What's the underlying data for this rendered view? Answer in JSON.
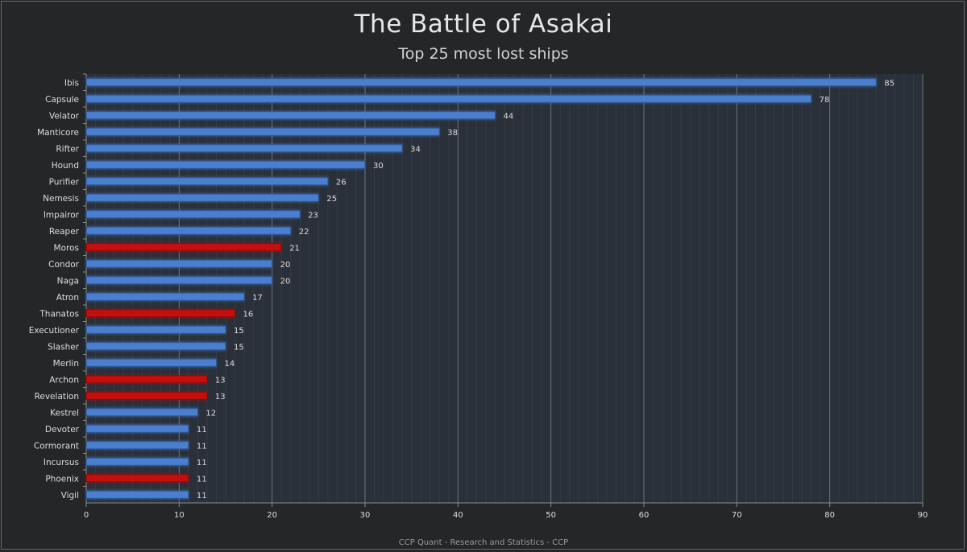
{
  "chart_data": {
    "type": "bar",
    "orientation": "horizontal",
    "title": "The Battle of Asakai",
    "subtitle": "Top 25 most lost ships",
    "footer": "CCP Quant - Research and Statistics - CCP",
    "categories": [
      "Ibis",
      "Capsule",
      "Velator",
      "Manticore",
      "Rifter",
      "Hound",
      "Purifier",
      "Nemesis",
      "Impairor",
      "Reaper",
      "Moros",
      "Condor",
      "Naga",
      "Atron",
      "Thanatos",
      "Executioner",
      "Slasher",
      "Merlin",
      "Archon",
      "Revelation",
      "Kestrel",
      "Devoter",
      "Cormorant",
      "Incursus",
      "Phoenix",
      "Vigil"
    ],
    "values": [
      85,
      78,
      44,
      38,
      34,
      30,
      26,
      25,
      23,
      22,
      21,
      20,
      20,
      17,
      16,
      15,
      15,
      14,
      13,
      13,
      12,
      11,
      11,
      11,
      11,
      11
    ],
    "highlight": [
      false,
      false,
      false,
      false,
      false,
      false,
      false,
      false,
      false,
      false,
      true,
      false,
      false,
      false,
      true,
      false,
      false,
      false,
      true,
      true,
      false,
      false,
      false,
      false,
      true,
      false
    ],
    "xlim": [
      0,
      90
    ],
    "xticks": [
      0,
      10,
      20,
      30,
      40,
      50,
      60,
      70,
      80,
      90
    ],
    "grid": true,
    "colors": {
      "default": "#4a7fcf",
      "highlight": "#c40f0f",
      "background": "#252628",
      "plot_background": "#2a3039"
    }
  }
}
